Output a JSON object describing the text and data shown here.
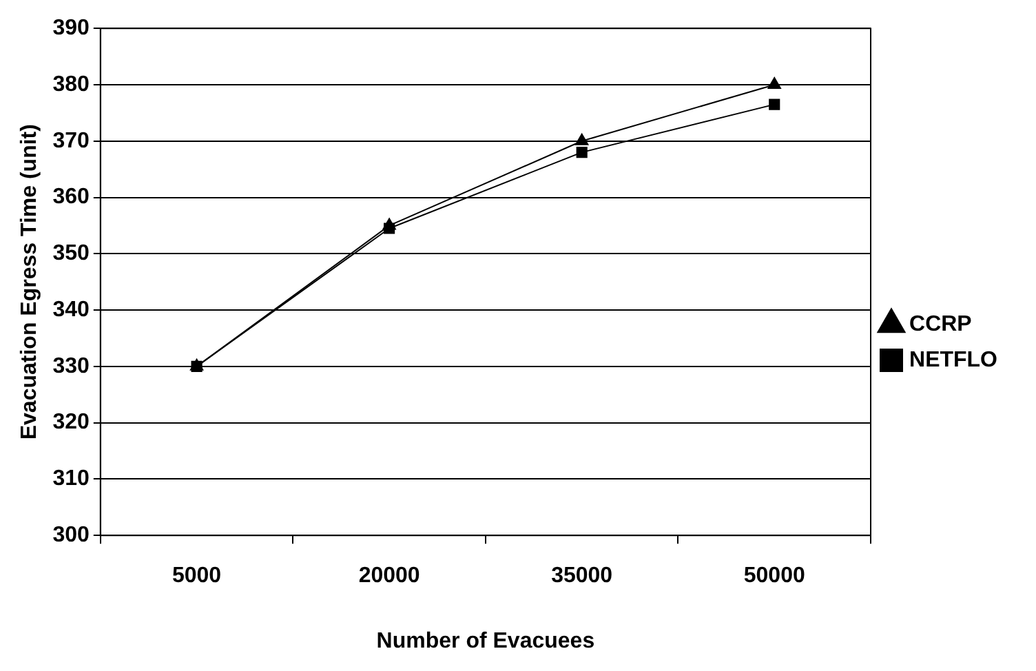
{
  "chart_data": {
    "type": "line",
    "xlabel": "Number of Evacuees",
    "ylabel": "Evacuation Egress Time (unit)",
    "categories": [
      "5000",
      "20000",
      "35000",
      "50000"
    ],
    "series": [
      {
        "name": "CCRP",
        "color": "#000000",
        "marker": "triangle",
        "values": [
          330,
          355,
          370,
          380
        ]
      },
      {
        "name": "NETFLO",
        "color": "#000000",
        "marker": "square",
        "values": [
          330,
          354.5,
          368,
          376.5
        ]
      }
    ],
    "ylim": [
      300,
      390
    ],
    "yticks": [
      300,
      310,
      320,
      330,
      340,
      350,
      360,
      370,
      380,
      390
    ],
    "grid": "y",
    "legend": "right"
  }
}
